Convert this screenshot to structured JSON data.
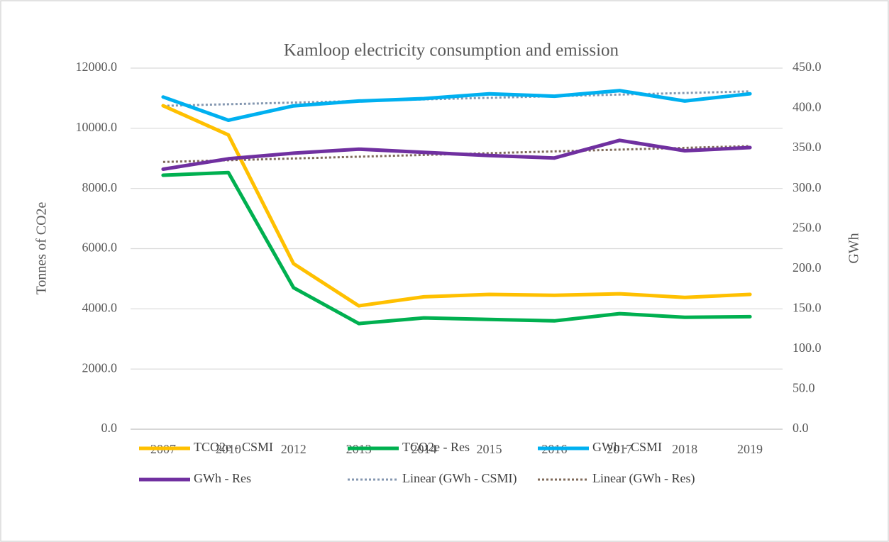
{
  "chart_data": {
    "type": "line",
    "title": "Kamloop electricity consumption and emission",
    "y_label": "Tonnes of CO2e",
    "y2_label": "GWh",
    "categories": [
      "2007",
      "2010",
      "2012",
      "2013",
      "2014",
      "2015",
      "2016",
      "2017",
      "2018",
      "2019"
    ],
    "ylim": [
      0,
      12000
    ],
    "yticks": [
      {
        "value": 0,
        "label": "0.0"
      },
      {
        "value": 2000,
        "label": "2000.0"
      },
      {
        "value": 4000,
        "label": "4000.0"
      },
      {
        "value": 6000,
        "label": "6000.0"
      },
      {
        "value": 8000,
        "label": "8000.0"
      },
      {
        "value": 10000,
        "label": "10000.0"
      },
      {
        "value": 12000,
        "label": "12000.0"
      }
    ],
    "y2lim": [
      0,
      450
    ],
    "y2ticks": [
      {
        "value": 0,
        "label": "0.0"
      },
      {
        "value": 50,
        "label": "50.0"
      },
      {
        "value": 100,
        "label": "100.0"
      },
      {
        "value": 150,
        "label": "150.0"
      },
      {
        "value": 200,
        "label": "200.0"
      },
      {
        "value": 250,
        "label": "250.0"
      },
      {
        "value": 300,
        "label": "300.0"
      },
      {
        "value": 350,
        "label": "350.0"
      },
      {
        "value": 400,
        "label": "400.0"
      },
      {
        "value": 450,
        "label": "450.0"
      }
    ],
    "grid": true,
    "legend": "bottom",
    "series": [
      {
        "name": "TCO2e - CSMI",
        "color": "#FFC000",
        "values": [
          10750,
          9780,
          5500,
          4100,
          4400,
          4480,
          4450,
          4500,
          4380,
          4480
        ]
      },
      {
        "name": "TCO2e - Res",
        "color": "#00B050",
        "values": [
          8440,
          8530,
          4700,
          3510,
          3700,
          3650,
          3600,
          3840,
          3720,
          3740
        ]
      },
      {
        "name": "GWh - CSMI",
        "color": "#00B0F0",
        "axis": "y2",
        "values": [
          414,
          385,
          403,
          409,
          412,
          418,
          415,
          422,
          409,
          418
        ]
      },
      {
        "name": "GWh - Res",
        "color": "#7030A0",
        "axis": "y2",
        "values": [
          324,
          337,
          344,
          349,
          345,
          341,
          338,
          360,
          347,
          351
        ]
      },
      {
        "name": "Linear (GWh - CSMI)",
        "color": "#8497B0",
        "axis": "y2",
        "dotted": true,
        "values": [
          403,
          405,
          407,
          409,
          411,
          413,
          415,
          417,
          419,
          421
        ]
      },
      {
        "name": "Linear (GWh - Res)",
        "color": "#7F6A5A",
        "axis": "y2",
        "dotted": true,
        "values": [
          333,
          335.2,
          337.4,
          339.6,
          341.8,
          344,
          346.2,
          348.4,
          350.6,
          352.8
        ]
      }
    ]
  }
}
